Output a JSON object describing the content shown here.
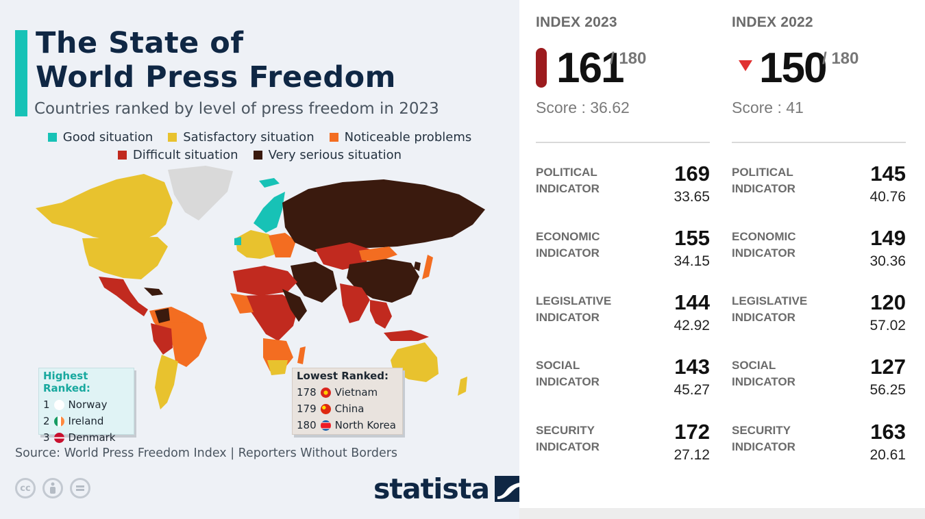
{
  "header": {
    "title_line1": "The State of",
    "title_line2": "World Press Freedom",
    "subtitle": "Countries ranked by level of press freedom in 2023"
  },
  "legend": [
    {
      "label": "Good situation",
      "color": "#17c2b6"
    },
    {
      "label": "Satisfactory situation",
      "color": "#e8c22e"
    },
    {
      "label": "Noticeable problems",
      "color": "#f36d21"
    },
    {
      "label": "Difficult situation",
      "color": "#c12a1f"
    },
    {
      "label": "Very serious situation",
      "color": "#3a1a0e"
    }
  ],
  "highest_ranked": {
    "heading": "Highest Ranked:",
    "items": [
      {
        "rank": "1",
        "country": "Norway",
        "flag_icon": "norway-flag-icon"
      },
      {
        "rank": "2",
        "country": "Ireland",
        "flag_icon": "ireland-flag-icon"
      },
      {
        "rank": "3",
        "country": "Denmark",
        "flag_icon": "denmark-flag-icon"
      }
    ]
  },
  "lowest_ranked": {
    "heading": "Lowest Ranked:",
    "items": [
      {
        "rank": "178",
        "country": "Vietnam",
        "flag_icon": "vietnam-flag-icon"
      },
      {
        "rank": "179",
        "country": "China",
        "flag_icon": "china-flag-icon"
      },
      {
        "rank": "180",
        "country": "North Korea",
        "flag_icon": "north-korea-flag-icon"
      }
    ]
  },
  "footer": {
    "source": "Source: World Press Freedom Index | Reporters Without Borders",
    "brand": "statista"
  },
  "chart_data": {
    "type": "table",
    "out_of": "/ 180",
    "columns": [
      {
        "heading": "INDEX 2023",
        "rank": "161",
        "score": "Score : 36.62",
        "marker": "red-pill",
        "indicators": [
          {
            "name": "POLITICAL INDICATOR",
            "line1": "POLITICAL",
            "line2": "INDICATOR",
            "rank": "169",
            "score": "33.65"
          },
          {
            "name": "ECONOMIC INDICATOR",
            "line1": "ECONOMIC",
            "line2": "INDICATOR",
            "rank": "155",
            "score": "34.15"
          },
          {
            "name": "LEGISLATIVE INDICATOR",
            "line1": "LEGISLATIVE",
            "line2": "INDICATOR",
            "rank": "144",
            "score": "42.92"
          },
          {
            "name": "SOCIAL INDICATOR",
            "line1": "SOCIAL",
            "line2": "INDICATOR",
            "rank": "143",
            "score": "45.27"
          },
          {
            "name": "SECURITY INDICATOR",
            "line1": "SECURITY",
            "line2": "INDICATOR",
            "rank": "172",
            "score": "27.12"
          }
        ]
      },
      {
        "heading": "INDEX 2022",
        "rank": "150",
        "score": "Score : 41",
        "marker": "down-triangle",
        "indicators": [
          {
            "name": "POLITICAL INDICATOR",
            "line1": "POLITICAL",
            "line2": "INDICATOR",
            "rank": "145",
            "score": "40.76"
          },
          {
            "name": "ECONOMIC INDICATOR",
            "line1": "ECONOMIC",
            "line2": "INDICATOR",
            "rank": "149",
            "score": "30.36"
          },
          {
            "name": "LEGISLATIVE INDICATOR",
            "line1": "LEGISLATIVE",
            "line2": "INDICATOR",
            "rank": "120",
            "score": "57.02"
          },
          {
            "name": "SOCIAL INDICATOR",
            "line1": "SOCIAL",
            "line2": "INDICATOR",
            "rank": "127",
            "score": "56.25"
          },
          {
            "name": "SECURITY INDICATOR",
            "line1": "SECURITY",
            "line2": "INDICATOR",
            "rank": "163",
            "score": "20.61"
          }
        ]
      }
    ]
  }
}
